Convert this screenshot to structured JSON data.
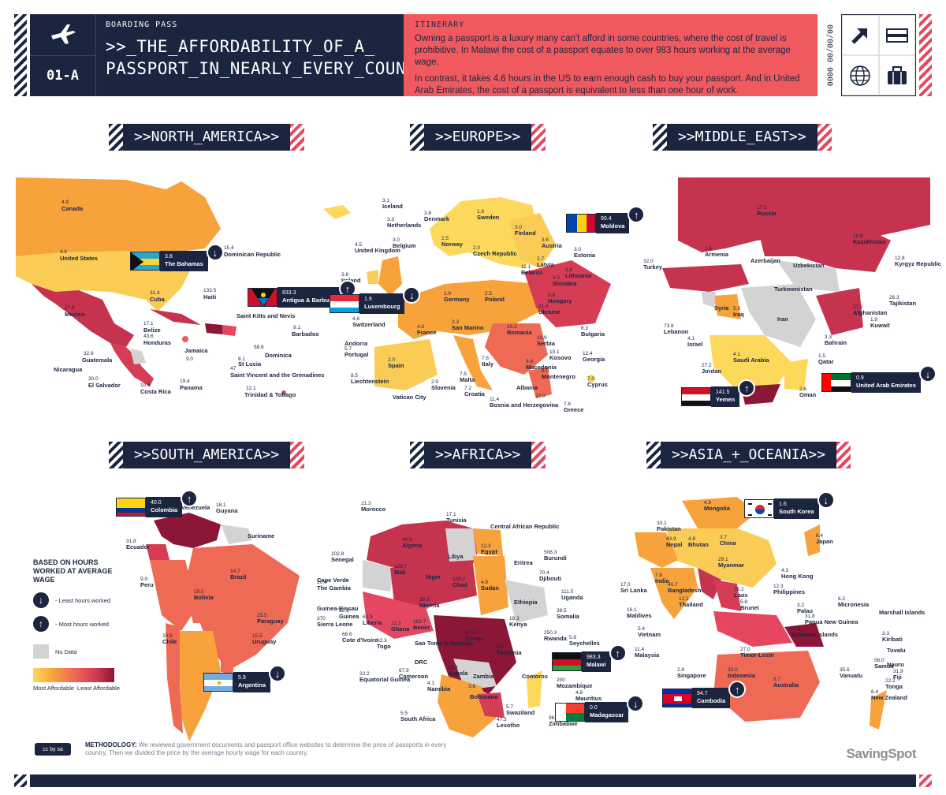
{
  "header": {
    "code": "01-A",
    "small_label": "BOARDING PASS",
    "title_line1": ">>_THE_AFFORDABILITY_OF_A_",
    "title_line2": "PASSPORT_IN_NEARLY_EVERY_COUNTRY",
    "itinerary_label": "ITINERARY",
    "itinerary_p1": "Owning a passport is a luxury many can't afford in some countries, where the cost of travel is prohibitive. In Malawi the cost of a passport equates to over 983 hours working at the average wage.",
    "itinerary_p2": "In contrast, it takes 4.6 hours in the US to earn enough cash to buy your passport. And in United Arab Emirates, the cost of a passport is equivalent to less than one hour of work.",
    "date_text": "00/00/00 0000",
    "icons": [
      "plane-icon",
      "arrow-up-right-icon",
      "ticket-icon",
      "globe-icon",
      "suitcase-icon"
    ]
  },
  "sections": {
    "north_america": ">>NORTH_AMERICA>>",
    "europe": ">>EUROPE>>",
    "middle_east": ">>MIDDLE_EAST>>",
    "south_america": ">>SOUTH_AMERICA>>",
    "africa": ">>AFRICA>>",
    "asia_oceania": ">>ASIA_+_OCEANIA>>"
  },
  "colors": {
    "navy": "#1b2540",
    "coral": "#f05a5f",
    "no_data": "#d3d3d3",
    "most_affordable": "#fcd95a",
    "least_affordable": "#8c1636"
  },
  "badges": {
    "bahamas": {
      "value": "3.8",
      "name": "The Bahamas",
      "dir": "down"
    },
    "antigua": {
      "value": "833.3",
      "name": "Antigua & Barbuda",
      "dir": "up"
    },
    "luxembourg": {
      "value": "1.9",
      "name": "Luxembourg",
      "dir": "down"
    },
    "moldova": {
      "value": "90.4",
      "name": "Moldova",
      "dir": "up"
    },
    "yemen": {
      "value": "141.5",
      "name": "Yemen",
      "dir": "up"
    },
    "uae": {
      "value": "0.9",
      "name": "United Arab Emirates",
      "dir": "down"
    },
    "colombia": {
      "value": "40.0",
      "name": "Colombia",
      "dir": "up"
    },
    "argentina": {
      "value": "5.9",
      "name": "Argentina",
      "dir": "down"
    },
    "malawi": {
      "value": "983.3",
      "name": "Malawi",
      "dir": "up"
    },
    "madagascar": {
      "value": "0.0",
      "name": "Madagascar",
      "dir": "down"
    },
    "south_korea": {
      "value": "1.6",
      "name": "South Korea",
      "dir": "down"
    },
    "cambodia": {
      "value": "94.7",
      "name": "Cambodia",
      "dir": "up"
    }
  },
  "map_labels": {
    "north_america": [
      {
        "v": "4.9",
        "n": "Canada"
      },
      {
        "v": "4.6",
        "n": "United States"
      },
      {
        "v": "17.6",
        "n": "Mexico"
      },
      {
        "v": "31.4",
        "n": "Cuba"
      },
      {
        "v": "133.5",
        "n": "Haiti"
      },
      {
        "v": "15.4",
        "n": "Dominican Republic"
      },
      {
        "v": "17.1",
        "n": "Belize"
      },
      {
        "v": "43.6",
        "n": "Honduras"
      },
      {
        "v": "32.6",
        "n": "Guatemala"
      },
      {
        "v": "",
        "n": "Nicaragua"
      },
      {
        "v": "30.0",
        "n": "El Salvador"
      },
      {
        "v": "10.5",
        "n": "Costa Rica"
      },
      {
        "v": "19.4",
        "n": "Panama"
      },
      {
        "v": "9.0",
        "n": "Jamaica"
      },
      {
        "v": "",
        "n": "Saint Kitts and Nevis"
      },
      {
        "v": "9.1",
        "n": "Barbados"
      },
      {
        "v": "58.6",
        "n": "Dominica"
      },
      {
        "v": "8.1",
        "n": "St Lucia"
      },
      {
        "v": "47",
        "n": "Saint Vincent and the Grenadines"
      },
      {
        "v": "12.1",
        "n": "Trinidad & Tobago"
      }
    ],
    "europe": [
      {
        "v": "3.1",
        "n": "Iceland"
      },
      {
        "v": "3.8",
        "n": "Denmark"
      },
      {
        "v": "1.9",
        "n": "Sweden"
      },
      {
        "v": "3.0",
        "n": "Finland"
      },
      {
        "v": "3.3",
        "n": "Netherlands"
      },
      {
        "v": "2.5",
        "n": "Norway"
      },
      {
        "v": "3.0",
        "n": "Belgium"
      },
      {
        "v": "4.5",
        "n": "United Kingdom"
      },
      {
        "v": "3.8",
        "n": "Ireland"
      },
      {
        "v": "2.0",
        "n": "Czech Republic"
      },
      {
        "v": "3.6",
        "n": "Austria"
      },
      {
        "v": "3.0",
        "n": "Estonia"
      },
      {
        "v": "2.7",
        "n": "Latvia"
      },
      {
        "v": "3.8",
        "n": "Lithuania"
      },
      {
        "v": "3.3",
        "n": "Slovakia"
      },
      {
        "v": "2.9",
        "n": "Germany"
      },
      {
        "v": "2.5",
        "n": "Poland"
      },
      {
        "v": "11.1",
        "n": "Belarus"
      },
      {
        "v": "3.8",
        "n": "Hungary"
      },
      {
        "v": "21.8",
        "n": "Ukraine"
      },
      {
        "v": "4.6",
        "n": "Switzerland"
      },
      {
        "v": "",
        "n": "Andorra"
      },
      {
        "v": "4.8",
        "n": "France"
      },
      {
        "v": "2.3",
        "n": "San Marino"
      },
      {
        "v": "10.2",
        "n": "Romania"
      },
      {
        "v": "6.3",
        "n": "Bulgaria"
      },
      {
        "v": "10.9",
        "n": "Serbia"
      },
      {
        "v": "5.7",
        "n": "Portugal"
      },
      {
        "v": "2.0",
        "n": "Spain"
      },
      {
        "v": "12.4",
        "n": "Georgia"
      },
      {
        "v": "10.1",
        "n": "Kosovo"
      },
      {
        "v": "9.6",
        "n": "Macedonia"
      },
      {
        "v": "8.0",
        "n": "Montenegro"
      },
      {
        "v": "7.6",
        "n": "Italy"
      },
      {
        "v": "8.5",
        "n": "Liechtenstein"
      },
      {
        "v": "2.9",
        "n": "Slovenia"
      },
      {
        "v": "7.5",
        "n": "Malta"
      },
      {
        "v": "7.2",
        "n": "Croatia"
      },
      {
        "v": "",
        "n": "Albania"
      },
      {
        "v": "7.0",
        "n": "Cyprus"
      },
      {
        "v": "",
        "n": "Vatican City"
      },
      {
        "v": "11.4",
        "n": "Bosnia and Herzegovina"
      },
      {
        "v": "27.0",
        "n": ""
      },
      {
        "v": "7.6",
        "n": "Greece"
      }
    ],
    "middle_east": [
      {
        "v": "17.1",
        "n": "Russia"
      },
      {
        "v": "19.9",
        "n": "Kazakhstan"
      },
      {
        "v": "1.6",
        "n": "Armenia"
      },
      {
        "v": "",
        "n": "Azerbaijan"
      },
      {
        "v": "",
        "n": "Uzbekistan"
      },
      {
        "v": "12.8",
        "n": "Kyrgyz Republic"
      },
      {
        "v": "32.0",
        "n": "Turkey"
      },
      {
        "v": "",
        "n": "Turkmenistan"
      },
      {
        "v": "26.3",
        "n": "Tajikistan"
      },
      {
        "v": "",
        "n": "Syria"
      },
      {
        "v": "5.3",
        "n": "Iraq"
      },
      {
        "v": "",
        "n": "Iran"
      },
      {
        "v": "27.2",
        "n": "Afghanistan"
      },
      {
        "v": "1.9",
        "n": "Kuwait"
      },
      {
        "v": "73.8",
        "n": "Lebanon"
      },
      {
        "v": "3.3",
        "n": "Bahrain"
      },
      {
        "v": "4.1",
        "n": "Israel"
      },
      {
        "v": "4.1",
        "n": "Saudi Arabia"
      },
      {
        "v": "1.5",
        "n": "Qatar"
      },
      {
        "v": "27.2",
        "n": "Jordan"
      },
      {
        "v": "2.6",
        "n": "Oman"
      }
    ],
    "south_america": [
      {
        "v": "",
        "n": "Venezuela"
      },
      {
        "v": "18.1",
        "n": "Guyana"
      },
      {
        "v": "",
        "n": "Suriname"
      },
      {
        "v": "31.8",
        "n": "Ecuador"
      },
      {
        "v": "14.7",
        "n": "Brazil"
      },
      {
        "v": "9.9",
        "n": "Peru"
      },
      {
        "v": "15.0",
        "n": "Bolivia"
      },
      {
        "v": "15.5",
        "n": "Paraguay"
      },
      {
        "v": "10.6",
        "n": "Chile"
      },
      {
        "v": "15.5",
        "n": "Uruguay"
      }
    ],
    "africa": [
      {
        "v": "21.3",
        "n": "Morocco"
      },
      {
        "v": "17.1",
        "n": "Tunisia"
      },
      {
        "v": "",
        "n": "Central African Republic"
      },
      {
        "v": "49.9",
        "n": "Algeria"
      },
      {
        "v": "",
        "n": "Libya"
      },
      {
        "v": "12.3",
        "n": "Egypt"
      },
      {
        "v": "102.8",
        "n": "Senegal"
      },
      {
        "v": "",
        "n": "Eritrea"
      },
      {
        "v": "506.3",
        "n": "Burundi"
      },
      {
        "v": "109.7",
        "n": "Mali"
      },
      {
        "v": "",
        "n": "Niger"
      },
      {
        "v": "126.2",
        "n": "Chad"
      },
      {
        "v": "70.4",
        "n": "Djibouti"
      },
      {
        "v": "",
        "n": "Cape Verde"
      },
      {
        "v": "20.4",
        "n": "The Gambia"
      },
      {
        "v": "4.9",
        "n": "Sudan"
      },
      {
        "v": "111.5",
        "n": "Uganda"
      },
      {
        "v": "38.5",
        "n": "Nigeria"
      },
      {
        "v": "",
        "n": "Ethiopia"
      },
      {
        "v": "",
        "n": "Guinea-Bissau"
      },
      {
        "v": "12.3",
        "n": "Guinea"
      },
      {
        "v": "38.5",
        "n": "Somalia"
      },
      {
        "v": "370",
        "n": "Sierra Leone"
      },
      {
        "v": "61.9",
        "n": "Liberia"
      },
      {
        "v": "12.3",
        "n": "Ghana"
      },
      {
        "v": "169.7",
        "n": "Benin"
      },
      {
        "v": "18.3",
        "n": "Kenya"
      },
      {
        "v": "250.3",
        "n": "Rwanda"
      },
      {
        "v": "68.6",
        "n": "Cote d'Ivoire"
      },
      {
        "v": "62.3",
        "n": "Togo"
      },
      {
        "v": "973.7",
        "n": "Congo"
      },
      {
        "v": "",
        "n": "Sao Tome & Principe"
      },
      {
        "v": "6.5",
        "n": "Tanzania"
      },
      {
        "v": "5.8",
        "n": "Seychelles"
      },
      {
        "v": "",
        "n": "DRC"
      },
      {
        "v": "",
        "n": "Comoros"
      },
      {
        "v": "13.9",
        "n": "Angola"
      },
      {
        "v": "",
        "n": "Zambia"
      },
      {
        "v": "67.9",
        "n": "Cameroon"
      },
      {
        "v": "22.2",
        "n": "Equatorial Guinea"
      },
      {
        "v": "4.1",
        "n": "Namibia"
      },
      {
        "v": "",
        "n": "Botswana"
      },
      {
        "v": "200",
        "n": "Mozambique"
      },
      {
        "v": "4.8",
        "n": "Mauritius"
      },
      {
        "v": "3.8",
        "n": ""
      },
      {
        "v": "5.7",
        "n": "Swaziland"
      },
      {
        "v": "5.5",
        "n": "South Africa"
      },
      {
        "v": "47.3",
        "n": "Lesotho"
      },
      {
        "v": "96.4",
        "n": "Zimbabwe"
      }
    ],
    "asia_oceania": [
      {
        "v": "4.9",
        "n": "Mongolia"
      },
      {
        "v": "33.1",
        "n": "Pakistan"
      },
      {
        "v": "43.9",
        "n": "Nepal"
      },
      {
        "v": "4.8",
        "n": "Bhutan"
      },
      {
        "v": "3.7",
        "n": "China"
      },
      {
        "v": "8.4",
        "n": "Japan"
      },
      {
        "v": "29.1",
        "n": "Myanmar"
      },
      {
        "v": "7.8",
        "n": "India"
      },
      {
        "v": "4.3",
        "n": "Hong Kong"
      },
      {
        "v": "40.7",
        "n": "Bangladesh"
      },
      {
        "v": "17.0",
        "n": "Sri Lanka"
      },
      {
        "v": "26.2",
        "n": "Laos"
      },
      {
        "v": "12.3",
        "n": "Philippines"
      },
      {
        "v": "5.8",
        "n": "Brunei"
      },
      {
        "v": "12.1",
        "n": "Thailand"
      },
      {
        "v": "3.2",
        "n": "Palau"
      },
      {
        "v": "6.2",
        "n": "Micronesia"
      },
      {
        "v": "16.1",
        "n": "Maldives"
      },
      {
        "v": "",
        "n": "Marshall Islands"
      },
      {
        "v": "31.8",
        "n": "Papua New Guinea"
      },
      {
        "v": "5.4",
        "n": "Vietnam"
      },
      {
        "v": "3.3",
        "n": "Kiribati"
      },
      {
        "v": "27.6",
        "n": "Solomon Islands"
      },
      {
        "v": "",
        "n": "Nauru"
      },
      {
        "v": "11.4",
        "n": "Malaysia"
      },
      {
        "v": "27.0",
        "n": "Timor-Leste"
      },
      {
        "v": "",
        "n": "Tuvalu"
      },
      {
        "v": "2.8",
        "n": "Singapore"
      },
      {
        "v": "32.0",
        "n": "Indonesia"
      },
      {
        "v": "35.6",
        "n": "Vanuatu"
      },
      {
        "v": "56.0",
        "n": "Samoa"
      },
      {
        "v": "31.9",
        "n": "Fiji"
      },
      {
        "v": "22.2",
        "n": "Tonga"
      },
      {
        "v": "8.7",
        "n": "Australia"
      },
      {
        "v": "6.4",
        "n": "New Zealand"
      }
    ]
  },
  "legend": {
    "title": "BASED ON HOURS WORKED AT AVERAGE WAGE",
    "least": "- Least hours worked",
    "most": "- Most hours worked",
    "no_data": "No Data",
    "most_affordable": "Most Affordable",
    "least_affordable": "Least Affordable"
  },
  "footer": {
    "cc": "cc by sa",
    "method_label": "METHODOLOGY:",
    "method_text": "We reviewed government documents and passport office websites to determine the price of passports in every country. Then we divided the price by the average hourly wage for each country.",
    "brand": "SavingSpot"
  }
}
